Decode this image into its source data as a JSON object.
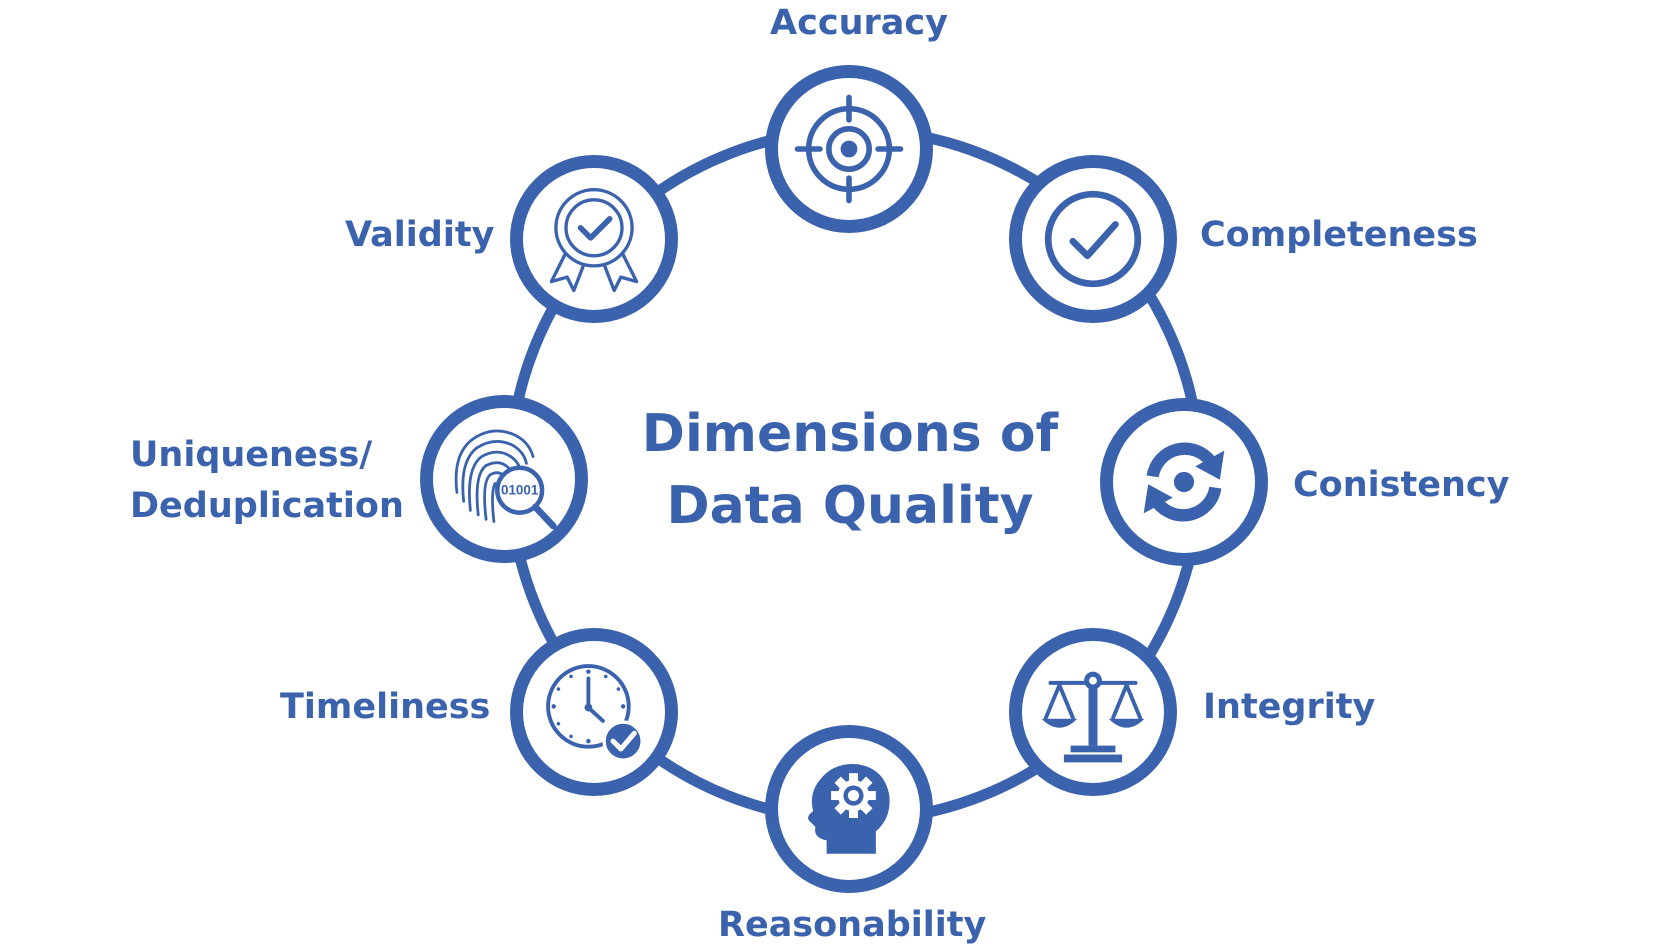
{
  "title": {
    "line1": "Dimensions of",
    "line2": "Data Quality"
  },
  "dimensions": {
    "accuracy": {
      "label": "Accuracy",
      "icon": "target-crosshair-icon"
    },
    "completeness": {
      "label": "Completeness",
      "icon": "checkmark-circle-icon"
    },
    "consistency": {
      "label": "Conistency",
      "icon": "sync-arrows-icon"
    },
    "integrity": {
      "label": "Integrity",
      "icon": "balance-scale-icon"
    },
    "reasonability": {
      "label": "Reasonability",
      "icon": "head-gear-icon"
    },
    "timeliness": {
      "label": "Timeliness",
      "icon": "clock-check-icon"
    },
    "uniqueness": {
      "label_line1": "Uniqueness/",
      "label_line2": "Deduplication",
      "icon": "fingerprint-magnifier-icon"
    },
    "validity": {
      "label": "Validity",
      "icon": "award-badge-check-icon"
    }
  },
  "colors": {
    "primary": "#3a62ad",
    "background": "#ffffff"
  }
}
